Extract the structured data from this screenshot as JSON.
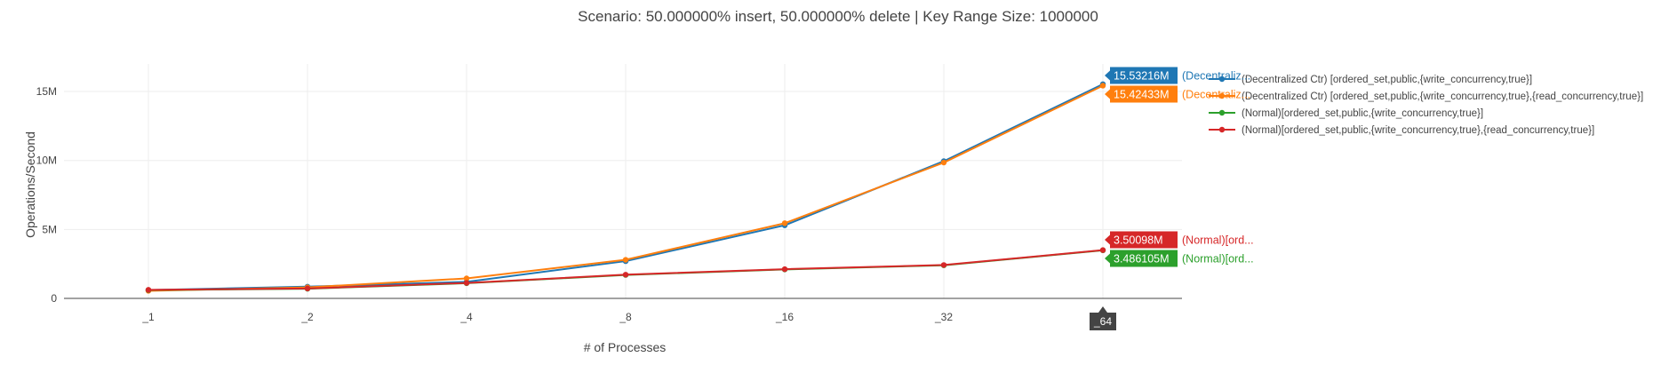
{
  "chart_data": {
    "type": "line",
    "title": "Scenario:  50.000000% insert,  50.000000% delete | Key Range Size: 1000000",
    "xlabel": "# of Processes",
    "ylabel": "Operations/Second",
    "categories": [
      "_1",
      "_2",
      "_4",
      "_8",
      "_16",
      "_32",
      "_64"
    ],
    "ylim": [
      0,
      17000000
    ],
    "y_ticks": [
      {
        "value": 0,
        "label": "0"
      },
      {
        "value": 5000000,
        "label": "5M"
      },
      {
        "value": 10000000,
        "label": "10M"
      },
      {
        "value": 15000000,
        "label": "15M"
      }
    ],
    "grid": true,
    "legend_position": "right",
    "hovered_category": "_64",
    "series": [
      {
        "name": "(Decentralized Ctr) [ordered_set,public,{write_concurrency,true}]",
        "color": "#1f77b4",
        "values": [
          600000,
          850000,
          1200000,
          2700000,
          5300000,
          9950000,
          15532160
        ],
        "hover_label": "15.53216M",
        "hover_name": "(Decentraliz..."
      },
      {
        "name": "(Decentralized Ctr) [ordered_set,public,{write_concurrency,true},{read_concurrency,true}]",
        "color": "#ff7f0e",
        "values": [
          550000,
          800000,
          1450000,
          2800000,
          5450000,
          9850000,
          15424330
        ],
        "hover_label": "15.42433M",
        "hover_name": "(Decentraliz..."
      },
      {
        "name": "(Normal)[ordered_set,public,{write_concurrency,true}]",
        "color": "#2ca02c",
        "values": [
          600000,
          700000,
          1100000,
          1700000,
          2100000,
          2400000,
          3486105
        ],
        "hover_label": "3.486105M",
        "hover_name": "(Normal)[ord..."
      },
      {
        "name": "(Normal)[ordered_set,public,{write_concurrency,true},{read_concurrency,true}]",
        "color": "#d62728",
        "values": [
          620000,
          720000,
          1120000,
          1720000,
          2120000,
          2420000,
          3500980
        ],
        "hover_label": "3.50098M",
        "hover_name": "(Normal)[ord..."
      }
    ]
  }
}
